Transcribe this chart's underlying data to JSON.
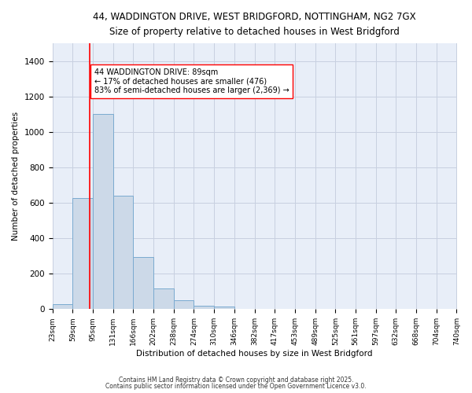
{
  "title1": "44, WADDINGTON DRIVE, WEST BRIDGFORD, NOTTINGHAM, NG2 7GX",
  "title2": "Size of property relative to detached houses in West Bridgford",
  "xlabel": "Distribution of detached houses by size in West Bridgford",
  "ylabel": "Number of detached properties",
  "bar_color": "#ccd9e8",
  "bar_edge_color": "#7aaad0",
  "bin_labels": [
    "23sqm",
    "59sqm",
    "95sqm",
    "131sqm",
    "166sqm",
    "202sqm",
    "238sqm",
    "274sqm",
    "310sqm",
    "346sqm",
    "382sqm",
    "417sqm",
    "453sqm",
    "489sqm",
    "525sqm",
    "561sqm",
    "597sqm",
    "632sqm",
    "668sqm",
    "704sqm",
    "740sqm"
  ],
  "bar_heights": [
    30,
    625,
    1100,
    640,
    295,
    115,
    50,
    20,
    15,
    0,
    0,
    0,
    0,
    0,
    0,
    0,
    0,
    0,
    0,
    0
  ],
  "ylim": [
    0,
    1500
  ],
  "yticks": [
    0,
    200,
    400,
    600,
    800,
    1000,
    1200,
    1400
  ],
  "property_line_x": 89,
  "bin_edges": [
    23,
    59,
    95,
    131,
    166,
    202,
    238,
    274,
    310,
    346,
    382,
    417,
    453,
    489,
    525,
    561,
    597,
    632,
    668,
    704,
    740
  ],
  "annotation_text": "44 WADDINGTON DRIVE: 89sqm\n← 17% of detached houses are smaller (476)\n83% of semi-detached houses are larger (2,369) →",
  "bg_color": "#e8eef8",
  "grid_color": "#c8d0e0",
  "footer1": "Contains HM Land Registry data © Crown copyright and database right 2025.",
  "footer2": "Contains public sector information licensed under the Open Government Licence v3.0."
}
